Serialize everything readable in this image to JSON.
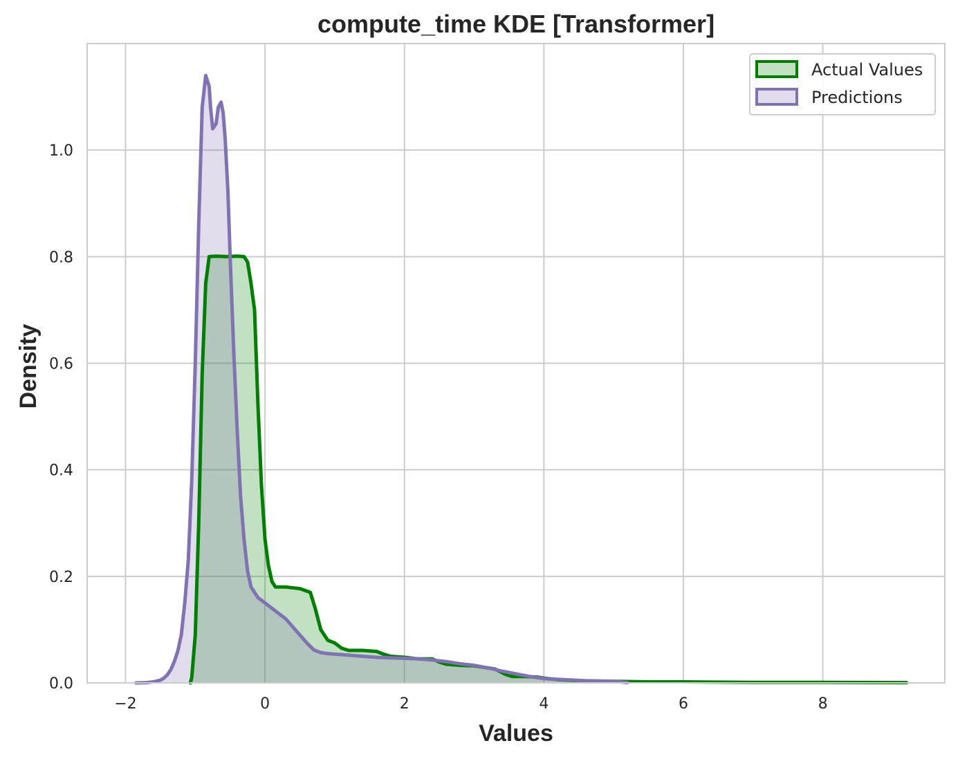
{
  "chart_data": {
    "type": "area",
    "title": "compute_time KDE [Transformer]",
    "xlabel": "Values",
    "ylabel": "Density",
    "xlim": [
      -2.55,
      9.75
    ],
    "ylim": [
      0,
      1.2
    ],
    "xticks": [
      -2,
      0,
      2,
      4,
      6,
      8
    ],
    "xtick_labels": [
      "−2",
      "0",
      "2",
      "4",
      "6",
      "8"
    ],
    "yticks": [
      0.0,
      0.2,
      0.4,
      0.6,
      0.8,
      1.0
    ],
    "ytick_labels": [
      "0.0",
      "0.2",
      "0.4",
      "0.6",
      "0.8",
      "1.0"
    ],
    "grid": true,
    "legend_position": "top-right",
    "series": [
      {
        "name": "Actual Values",
        "color": "#008000",
        "fill": "#008000",
        "fill_opacity": 0.24,
        "x": [
          -1.07,
          -1.05,
          -1.0,
          -0.95,
          -0.9,
          -0.85,
          -0.8,
          -0.7,
          -0.55,
          -0.4,
          -0.3,
          -0.25,
          -0.2,
          -0.15,
          -0.1,
          -0.05,
          0.0,
          0.05,
          0.1,
          0.15,
          0.2,
          0.3,
          0.5,
          0.65,
          0.72,
          0.8,
          0.9,
          1.0,
          1.1,
          1.2,
          1.4,
          1.6,
          1.7,
          1.8,
          2.0,
          2.2,
          2.4,
          2.5,
          2.6,
          2.8,
          3.0,
          3.2,
          3.3,
          3.45,
          3.55,
          3.7,
          3.9,
          4.0,
          4.2,
          4.5,
          5.0,
          5.5,
          6.0,
          7.0,
          8.0,
          9.2
        ],
        "y": [
          0.0,
          0.01,
          0.09,
          0.3,
          0.58,
          0.75,
          0.8,
          0.801,
          0.8,
          0.801,
          0.8,
          0.79,
          0.75,
          0.7,
          0.52,
          0.37,
          0.27,
          0.22,
          0.19,
          0.18,
          0.18,
          0.18,
          0.177,
          0.17,
          0.14,
          0.1,
          0.08,
          0.075,
          0.065,
          0.061,
          0.061,
          0.059,
          0.054,
          0.05,
          0.048,
          0.045,
          0.045,
          0.039,
          0.035,
          0.033,
          0.032,
          0.028,
          0.026,
          0.016,
          0.012,
          0.012,
          0.011,
          0.009,
          0.006,
          0.004,
          0.003,
          0.002,
          0.002,
          0.001,
          0.001,
          0.0005
        ]
      },
      {
        "name": "Predictions",
        "color": "#8172b3",
        "fill": "#8172b3",
        "fill_opacity": 0.24,
        "x": [
          -1.85,
          -1.7,
          -1.6,
          -1.5,
          -1.45,
          -1.4,
          -1.35,
          -1.3,
          -1.25,
          -1.2,
          -1.15,
          -1.1,
          -1.05,
          -1.0,
          -0.95,
          -0.9,
          -0.85,
          -0.8,
          -0.78,
          -0.75,
          -0.7,
          -0.67,
          -0.63,
          -0.6,
          -0.57,
          -0.53,
          -0.5,
          -0.45,
          -0.4,
          -0.35,
          -0.3,
          -0.25,
          -0.2,
          -0.15,
          -0.1,
          -0.05,
          0.0,
          0.1,
          0.2,
          0.3,
          0.4,
          0.5,
          0.6,
          0.7,
          0.8,
          0.9,
          1.0,
          1.2,
          1.4,
          1.6,
          1.8,
          2.0,
          2.2,
          2.4,
          2.6,
          2.8,
          3.0,
          3.2,
          3.4,
          3.6,
          3.8,
          4.0,
          4.3,
          4.6,
          5.0,
          5.2
        ],
        "y": [
          0.0,
          0.0005,
          0.002,
          0.005,
          0.009,
          0.015,
          0.025,
          0.04,
          0.06,
          0.09,
          0.15,
          0.23,
          0.38,
          0.6,
          0.86,
          1.08,
          1.14,
          1.12,
          1.08,
          1.04,
          1.05,
          1.08,
          1.09,
          1.07,
          1.02,
          0.92,
          0.8,
          0.63,
          0.48,
          0.35,
          0.27,
          0.21,
          0.18,
          0.17,
          0.16,
          0.155,
          0.15,
          0.14,
          0.13,
          0.12,
          0.105,
          0.09,
          0.075,
          0.062,
          0.057,
          0.055,
          0.054,
          0.052,
          0.05,
          0.048,
          0.047,
          0.046,
          0.045,
          0.043,
          0.04,
          0.036,
          0.033,
          0.028,
          0.022,
          0.017,
          0.012,
          0.008,
          0.006,
          0.004,
          0.003,
          0.0005
        ]
      }
    ]
  }
}
